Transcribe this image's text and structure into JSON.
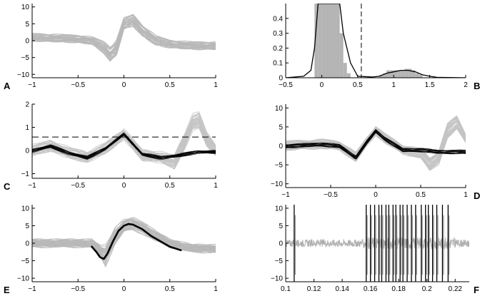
{
  "chart_data": [
    {
      "panel": "A",
      "type": "line",
      "xlim": [
        -1,
        1
      ],
      "ylim": [
        -11,
        11
      ],
      "xticks": [
        -1,
        -0.5,
        0,
        0.5,
        1
      ],
      "yticks": [
        -10,
        -5,
        0,
        5,
        10
      ],
      "series": [
        {
          "style": "gray-band",
          "color": "#b8b8b8",
          "x": [
            -1,
            -0.5,
            -0.35,
            -0.22,
            -0.15,
            -0.08,
            0,
            0.1,
            0.2,
            0.35,
            0.5,
            0.75,
            1
          ],
          "y_center": [
            1,
            0.5,
            0,
            -2,
            -4,
            -2,
            5,
            6,
            3,
            0,
            -1,
            -1.5,
            -1.5
          ],
          "y_spread": [
            2,
            2,
            2,
            3,
            4,
            4,
            3,
            3,
            3,
            2.5,
            2,
            2,
            2
          ]
        }
      ]
    },
    {
      "panel": "B",
      "type": "bar",
      "xlim": [
        -0.5,
        2
      ],
      "ylim": [
        0,
        0.5
      ],
      "xticks": [
        -0.5,
        0,
        0.5,
        1,
        1.5,
        2
      ],
      "yticks": [
        0,
        0.1,
        0.2,
        0.3,
        0.4
      ],
      "bins_x": [
        -0.1,
        -0.05,
        0,
        0.05,
        0.1,
        0.15,
        0.2,
        0.25,
        0.3,
        0.35,
        0.8,
        0.85,
        0.9,
        0.95,
        1.0,
        1.05,
        1.1,
        1.15,
        1.2,
        1.25,
        1.3,
        1.35
      ],
      "bins_y": [
        0.5,
        0.5,
        0.5,
        0.5,
        0.5,
        0.5,
        0.5,
        0.3,
        0.1,
        0.03,
        0.02,
        0.03,
        0.05,
        0.05,
        0.05,
        0.05,
        0.05,
        0.06,
        0.06,
        0.05,
        0.03,
        0.02
      ],
      "curve_x": [
        -0.5,
        -0.25,
        -0.15,
        -0.1,
        -0.05,
        0.1,
        0.25,
        0.3,
        0.4,
        0.5,
        0.7,
        0.8,
        0.9,
        1.0,
        1.1,
        1.2,
        1.3,
        1.4,
        1.5,
        1.6,
        2.0
      ],
      "curve_y": [
        0,
        0.01,
        0.05,
        0.2,
        0.5,
        0.5,
        0.5,
        0.3,
        0.1,
        0.01,
        0.005,
        0.01,
        0.03,
        0.04,
        0.05,
        0.05,
        0.04,
        0.02,
        0.01,
        0.003,
        0
      ],
      "threshold_x": 0.55
    },
    {
      "panel": "C",
      "type": "line",
      "xlim": [
        -1,
        1
      ],
      "ylim": [
        -1.2,
        2
      ],
      "xticks": [
        -1,
        -0.5,
        0,
        0.5,
        1
      ],
      "yticks": [
        -1,
        0,
        1,
        2
      ],
      "threshold_y": 0.58,
      "series": [
        {
          "style": "gray-band",
          "color": "#c4c4c4",
          "x": [
            -1,
            -0.8,
            -0.6,
            -0.4,
            -0.2,
            0,
            0.2,
            0.4,
            0.55,
            0.65,
            0.75,
            0.82,
            0.9,
            1
          ],
          "y_center": [
            0,
            0.2,
            -0.1,
            -0.3,
            0.1,
            0.7,
            -0.2,
            -0.3,
            -0.5,
            0.3,
            1.2,
            1.3,
            0.5,
            0
          ],
          "y_spread": [
            0.4,
            0.4,
            0.4,
            0.4,
            0.4,
            0.4,
            0.4,
            0.4,
            0.5,
            0.6,
            0.6,
            0.6,
            0.5,
            0.4
          ]
        },
        {
          "style": "black-band",
          "color": "#000000",
          "x": [
            -1,
            -0.8,
            -0.6,
            -0.4,
            -0.2,
            0,
            0.2,
            0.4,
            0.6,
            0.8,
            1
          ],
          "y_center": [
            0,
            0.2,
            -0.1,
            -0.3,
            0.1,
            0.72,
            -0.15,
            -0.3,
            -0.2,
            -0.05,
            -0.05
          ],
          "y_spread": [
            0.15,
            0.15,
            0.15,
            0.15,
            0.15,
            0.1,
            0.15,
            0.15,
            0.15,
            0.15,
            0.15
          ]
        }
      ]
    },
    {
      "panel": "D",
      "type": "line",
      "xlim": [
        -1,
        1
      ],
      "ylim": [
        -11,
        11
      ],
      "xticks": [
        -1,
        -0.5,
        0,
        0.5,
        1
      ],
      "yticks": [
        -10,
        -5,
        0,
        5,
        10
      ],
      "series": [
        {
          "style": "gray-band",
          "color": "#c4c4c4",
          "x": [
            -1,
            -0.6,
            -0.4,
            -0.22,
            -0.1,
            0,
            0.1,
            0.3,
            0.5,
            0.6,
            0.7,
            0.8,
            0.9,
            1
          ],
          "y_center": [
            0,
            0.5,
            0,
            -3,
            1,
            4,
            2,
            -1,
            -2,
            -5,
            -3,
            4,
            6,
            2
          ],
          "y_spread": [
            2,
            2,
            2,
            2,
            2,
            2,
            2,
            2,
            2,
            3,
            3,
            3,
            3,
            2
          ]
        },
        {
          "style": "black-band",
          "color": "#000000",
          "x": [
            -1,
            -0.6,
            -0.4,
            -0.22,
            -0.1,
            0,
            0.1,
            0.3,
            0.5,
            0.7,
            1
          ],
          "y_center": [
            0,
            0.5,
            0,
            -3,
            1,
            4,
            2,
            -1,
            -1,
            -1.5,
            -1.5
          ],
          "y_spread": [
            1,
            1,
            1,
            1,
            1,
            1,
            1,
            1,
            1,
            1,
            1
          ]
        }
      ]
    },
    {
      "panel": "E",
      "type": "line",
      "xlim": [
        -1,
        1
      ],
      "ylim": [
        -11,
        11
      ],
      "xticks": [
        -1,
        -0.5,
        0,
        0.5,
        1
      ],
      "yticks": [
        -10,
        -5,
        0,
        5,
        10
      ],
      "series": [
        {
          "style": "gray-band",
          "color": "#b8b8b8",
          "x": [
            -1,
            -0.5,
            -0.35,
            -0.25,
            -0.2,
            -0.1,
            0,
            0.1,
            0.2,
            0.35,
            0.5,
            0.75,
            1
          ],
          "y_center": [
            0,
            0,
            0,
            -2.5,
            -3.5,
            2,
            5,
            5.5,
            4.5,
            2,
            0,
            -1.5,
            -1.5
          ],
          "y_spread": [
            2,
            2,
            2,
            3,
            5,
            4,
            3,
            3,
            3,
            2.5,
            2,
            2,
            2
          ]
        },
        {
          "style": "mean",
          "color": "#000000",
          "x": [
            -0.35,
            -0.3,
            -0.26,
            -0.22,
            -0.18,
            -0.12,
            -0.06,
            0,
            0.05,
            0.1,
            0.2,
            0.3,
            0.4,
            0.5,
            0.62
          ],
          "y": [
            -1,
            -2.5,
            -4,
            -4.5,
            -3,
            0.5,
            3.5,
            5,
            5.5,
            5.3,
            4,
            2,
            0.5,
            -1,
            -2
          ]
        }
      ]
    },
    {
      "panel": "F",
      "type": "line",
      "xlim": [
        0.1,
        0.23
      ],
      "ylim": [
        -11,
        11
      ],
      "xticks": [
        0.1,
        0.12,
        0.14,
        0.16,
        0.18,
        0.2,
        0.22
      ],
      "yticks": [
        -10,
        -5,
        0,
        5,
        10
      ],
      "spike_times": [
        0.106,
        0.157,
        0.16,
        0.163,
        0.166,
        0.168,
        0.171,
        0.173,
        0.176,
        0.178,
        0.181,
        0.183,
        0.186,
        0.189,
        0.192,
        0.196,
        0.199,
        0.201,
        0.204,
        0.207,
        0.211,
        0.215
      ],
      "series": [
        {
          "style": "trace",
          "color": "#b0b0b0",
          "noise_amplitude": 1.5
        }
      ]
    }
  ]
}
